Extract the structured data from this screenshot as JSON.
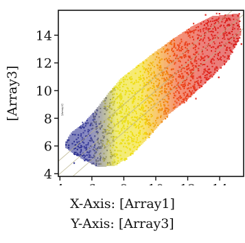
{
  "chart_data": {
    "type": "scatter",
    "xlabel": "X-Axis: [Array1]",
    "ylabel": "[Array3]",
    "inner_ylabel": "[Array3]",
    "caption_x": "X-Axis: [Array1]",
    "caption_y": "Y-Axis: [Array3]",
    "xlim": [
      3.9,
      15.5
    ],
    "ylim": [
      3.8,
      15.8
    ],
    "x_ticks": [
      4,
      6,
      8,
      10,
      12,
      14
    ],
    "y_ticks": [
      4,
      6,
      8,
      10,
      12,
      14
    ],
    "x_tick_labels": [
      "4",
      "6",
      "8",
      "10",
      "12",
      "14"
    ],
    "y_tick_labels": [
      "4",
      "6",
      "8",
      "10",
      "12",
      "14"
    ],
    "grid": false,
    "reference_lines": [
      {
        "slope": 1,
        "intercept": 1
      },
      {
        "slope": 1,
        "intercept": 0
      },
      {
        "slope": 1,
        "intercept": -1
      }
    ],
    "color_scale": [
      {
        "x": 4.2,
        "color": "#2a2f8c"
      },
      {
        "x": 5.8,
        "color": "#3a3d9c"
      },
      {
        "x": 6.7,
        "color": "#8a8a6a"
      },
      {
        "x": 7.5,
        "color": "#e8e020"
      },
      {
        "x": 9.0,
        "color": "#f2dc10"
      },
      {
        "x": 10.2,
        "color": "#f29a10"
      },
      {
        "x": 11.3,
        "color": "#ee4a18"
      },
      {
        "x": 13.0,
        "color": "#e02a22"
      },
      {
        "x": 15.0,
        "color": "#d8201e"
      }
    ],
    "cloud_path": [
      [
        4.3,
        6.2
      ],
      [
        4.7,
        7.0
      ],
      [
        5.5,
        7.7
      ],
      [
        6.2,
        8.6
      ],
      [
        7.0,
        9.8
      ],
      [
        7.8,
        10.9
      ],
      [
        8.8,
        11.8
      ],
      [
        9.8,
        12.7
      ],
      [
        11.0,
        13.7
      ],
      [
        12.3,
        14.7
      ],
      [
        13.5,
        15.4
      ],
      [
        15.2,
        15.6
      ],
      [
        15.3,
        14.0
      ],
      [
        14.5,
        12.2
      ],
      [
        13.5,
        11.0
      ],
      [
        12.0,
        9.4
      ],
      [
        10.8,
        8.3
      ],
      [
        9.5,
        6.6
      ],
      [
        8.5,
        5.4
      ],
      [
        7.5,
        4.6
      ],
      [
        6.4,
        4.5
      ],
      [
        5.5,
        5.0
      ],
      [
        4.8,
        5.5
      ],
      [
        4.35,
        5.9
      ]
    ],
    "point_density": 3200
  }
}
